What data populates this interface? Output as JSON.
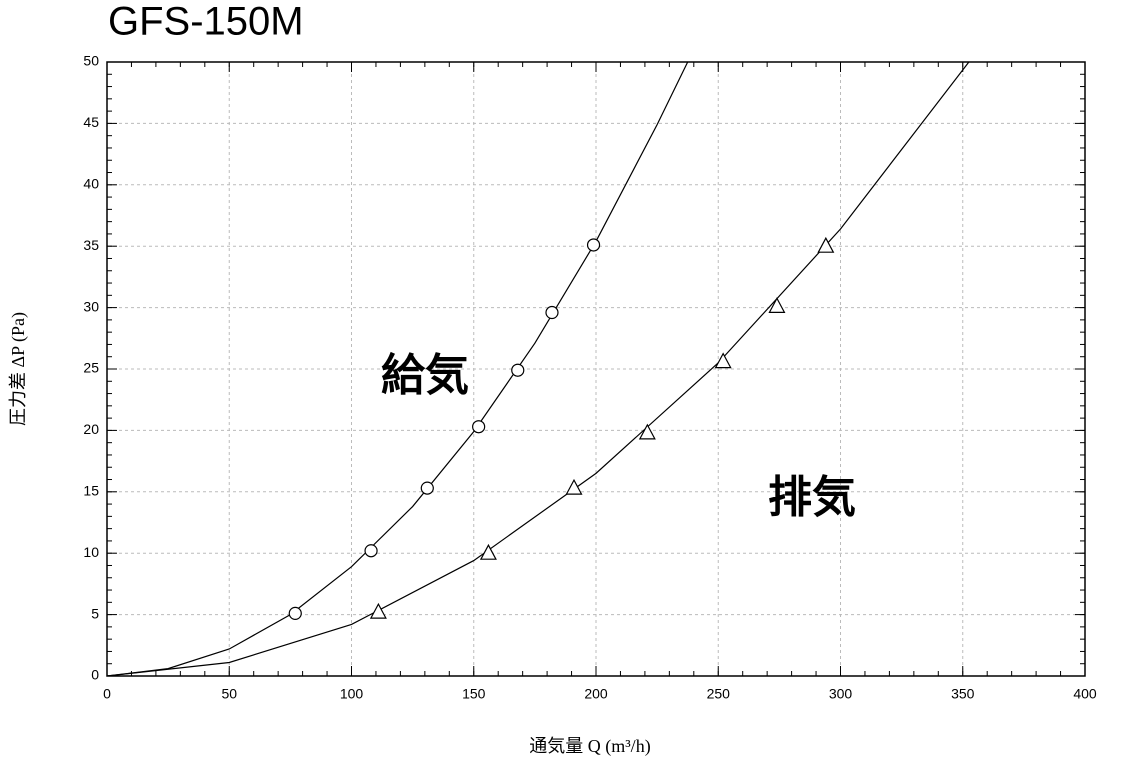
{
  "chart_data": {
    "type": "scatter",
    "title": "GFS-150M",
    "x_label": "通気量 Q (m³/h)",
    "y_label": "圧力差 ΔP (Pa)",
    "xlim": [
      0,
      400
    ],
    "xticks": [
      0,
      50,
      100,
      150,
      200,
      250,
      300,
      350,
      400
    ],
    "ylim": [
      0,
      50
    ],
    "yticks": [
      0,
      5,
      10,
      15,
      20,
      25,
      30,
      35,
      40,
      45,
      50
    ],
    "grid": true,
    "series": [
      {
        "name": "給気",
        "color": "#000000",
        "marker": "circle",
        "x": [
          77,
          108,
          131,
          152,
          168,
          182,
          199
        ],
        "values": [
          5.1,
          10.2,
          15.3,
          20.3,
          24.9,
          29.6,
          35.1
        ],
        "curve_x": [
          0,
          25,
          50,
          75,
          100,
          125,
          150,
          175,
          200,
          225,
          237.5
        ],
        "curve_values": [
          0,
          0.6,
          2.2,
          5.0,
          8.9,
          13.8,
          19.9,
          27.1,
          35.4,
          44.9,
          50.0
        ]
      },
      {
        "name": "排気",
        "color": "#000000",
        "marker": "triangle",
        "x": [
          111,
          156,
          191,
          221,
          252,
          274,
          294
        ],
        "values": [
          5.2,
          10.0,
          15.3,
          19.8,
          25.6,
          30.1,
          35.0
        ],
        "curve_x": [
          0,
          50,
          100,
          150,
          200,
          250,
          300,
          352.5
        ],
        "curve_values": [
          0,
          1.1,
          4.2,
          9.4,
          16.5,
          25.5,
          36.4,
          50.0
        ]
      }
    ]
  }
}
